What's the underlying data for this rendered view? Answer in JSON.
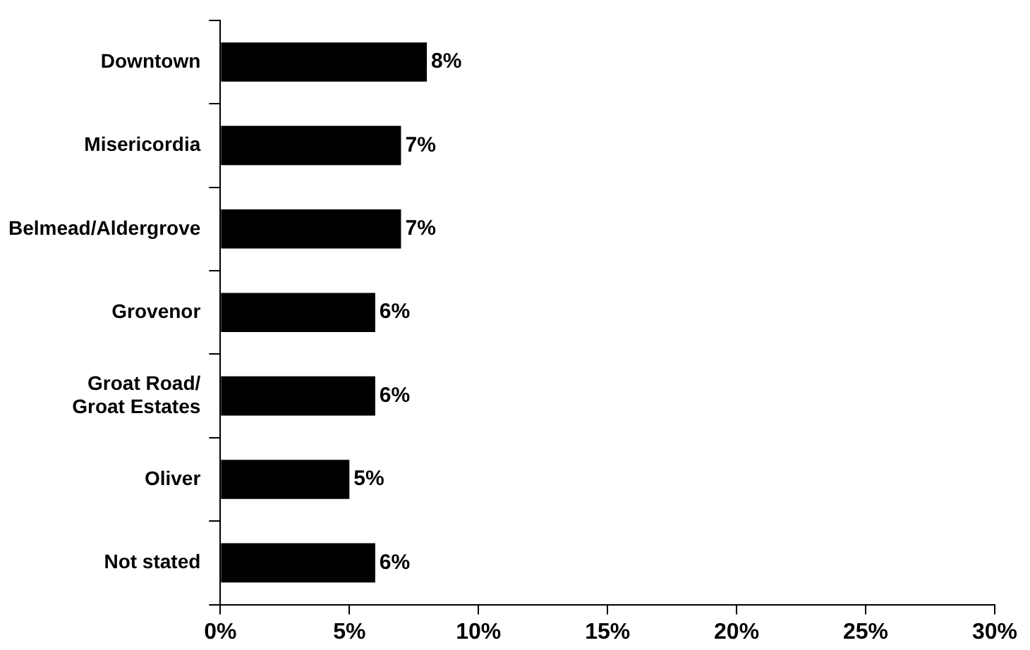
{
  "chart_data": {
    "type": "bar",
    "orientation": "horizontal",
    "categories": [
      "Downtown",
      "Misericordia",
      "Belmead/Aldergrove",
      "Grovenor",
      "Groat Road/\nGroat Estates",
      "Oliver",
      "Not stated"
    ],
    "values": [
      8,
      7,
      7,
      6,
      6,
      5,
      6
    ],
    "value_labels": [
      "8%",
      "7%",
      "7%",
      "6%",
      "6%",
      "5%",
      "6%"
    ],
    "color": "#000000",
    "xlim": [
      0,
      30
    ],
    "xticks": [
      {
        "value": 0,
        "label": "0%"
      },
      {
        "value": 5,
        "label": "5%"
      },
      {
        "value": 10,
        "label": "10%"
      },
      {
        "value": 15,
        "label": "15%"
      },
      {
        "value": 20,
        "label": "20%"
      },
      {
        "value": 25,
        "label": "25%"
      },
      {
        "value": 30,
        "label": "30%"
      }
    ],
    "grid": false,
    "legend": false
  }
}
